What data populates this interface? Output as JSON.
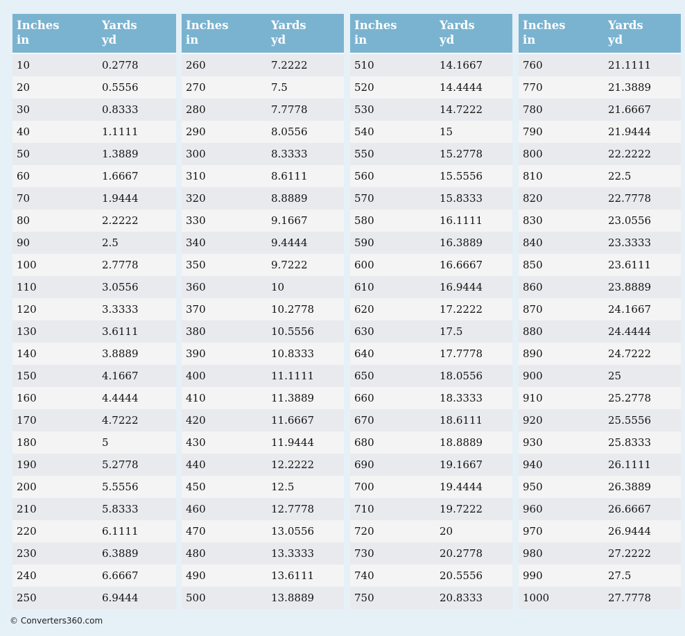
{
  "tables": [
    {
      "header": [
        {
          "name": "Inches",
          "unit": "in"
        },
        {
          "name": "Yards",
          "unit": "yd"
        }
      ],
      "rows": [
        [
          "10",
          "0.2778"
        ],
        [
          "20",
          "0.5556"
        ],
        [
          "30",
          "0.8333"
        ],
        [
          "40",
          "1.1111"
        ],
        [
          "50",
          "1.3889"
        ],
        [
          "60",
          "1.6667"
        ],
        [
          "70",
          "1.9444"
        ],
        [
          "80",
          "2.2222"
        ],
        [
          "90",
          "2.5"
        ],
        [
          "100",
          "2.7778"
        ],
        [
          "110",
          "3.0556"
        ],
        [
          "120",
          "3.3333"
        ],
        [
          "130",
          "3.6111"
        ],
        [
          "140",
          "3.8889"
        ],
        [
          "150",
          "4.1667"
        ],
        [
          "160",
          "4.4444"
        ],
        [
          "170",
          "4.7222"
        ],
        [
          "180",
          "5"
        ],
        [
          "190",
          "5.2778"
        ],
        [
          "200",
          "5.5556"
        ],
        [
          "210",
          "5.8333"
        ],
        [
          "220",
          "6.1111"
        ],
        [
          "230",
          "6.3889"
        ],
        [
          "240",
          "6.6667"
        ],
        [
          "250",
          "6.9444"
        ]
      ]
    },
    {
      "header": [
        {
          "name": "Inches",
          "unit": "in"
        },
        {
          "name": "Yards",
          "unit": "yd"
        }
      ],
      "rows": [
        [
          "260",
          "7.2222"
        ],
        [
          "270",
          "7.5"
        ],
        [
          "280",
          "7.7778"
        ],
        [
          "290",
          "8.0556"
        ],
        [
          "300",
          "8.3333"
        ],
        [
          "310",
          "8.6111"
        ],
        [
          "320",
          "8.8889"
        ],
        [
          "330",
          "9.1667"
        ],
        [
          "340",
          "9.4444"
        ],
        [
          "350",
          "9.7222"
        ],
        [
          "360",
          "10"
        ],
        [
          "370",
          "10.2778"
        ],
        [
          "380",
          "10.5556"
        ],
        [
          "390",
          "10.8333"
        ],
        [
          "400",
          "11.1111"
        ],
        [
          "410",
          "11.3889"
        ],
        [
          "420",
          "11.6667"
        ],
        [
          "430",
          "11.9444"
        ],
        [
          "440",
          "12.2222"
        ],
        [
          "450",
          "12.5"
        ],
        [
          "460",
          "12.7778"
        ],
        [
          "470",
          "13.0556"
        ],
        [
          "480",
          "13.3333"
        ],
        [
          "490",
          "13.6111"
        ],
        [
          "500",
          "13.8889"
        ]
      ]
    },
    {
      "header": [
        {
          "name": "Inches",
          "unit": "in"
        },
        {
          "name": "Yards",
          "unit": "yd"
        }
      ],
      "rows": [
        [
          "510",
          "14.1667"
        ],
        [
          "520",
          "14.4444"
        ],
        [
          "530",
          "14.7222"
        ],
        [
          "540",
          "15"
        ],
        [
          "550",
          "15.2778"
        ],
        [
          "560",
          "15.5556"
        ],
        [
          "570",
          "15.8333"
        ],
        [
          "580",
          "16.1111"
        ],
        [
          "590",
          "16.3889"
        ],
        [
          "600",
          "16.6667"
        ],
        [
          "610",
          "16.9444"
        ],
        [
          "620",
          "17.2222"
        ],
        [
          "630",
          "17.5"
        ],
        [
          "640",
          "17.7778"
        ],
        [
          "650",
          "18.0556"
        ],
        [
          "660",
          "18.3333"
        ],
        [
          "670",
          "18.6111"
        ],
        [
          "680",
          "18.8889"
        ],
        [
          "690",
          "19.1667"
        ],
        [
          "700",
          "19.4444"
        ],
        [
          "710",
          "19.7222"
        ],
        [
          "720",
          "20"
        ],
        [
          "730",
          "20.2778"
        ],
        [
          "740",
          "20.5556"
        ],
        [
          "750",
          "20.8333"
        ]
      ]
    },
    {
      "header": [
        {
          "name": "Inches",
          "unit": "in"
        },
        {
          "name": "Yards",
          "unit": "yd"
        }
      ],
      "rows": [
        [
          "760",
          "21.1111"
        ],
        [
          "770",
          "21.3889"
        ],
        [
          "780",
          "21.6667"
        ],
        [
          "790",
          "21.9444"
        ],
        [
          "800",
          "22.2222"
        ],
        [
          "810",
          "22.5"
        ],
        [
          "820",
          "22.7778"
        ],
        [
          "830",
          "23.0556"
        ],
        [
          "840",
          "23.3333"
        ],
        [
          "850",
          "23.6111"
        ],
        [
          "860",
          "23.8889"
        ],
        [
          "870",
          "24.1667"
        ],
        [
          "880",
          "24.4444"
        ],
        [
          "890",
          "24.7222"
        ],
        [
          "900",
          "25"
        ],
        [
          "910",
          "25.2778"
        ],
        [
          "920",
          "25.5556"
        ],
        [
          "930",
          "25.8333"
        ],
        [
          "940",
          "26.1111"
        ],
        [
          "950",
          "26.3889"
        ],
        [
          "960",
          "26.6667"
        ],
        [
          "970",
          "26.9444"
        ],
        [
          "980",
          "27.2222"
        ],
        [
          "990",
          "27.5"
        ],
        [
          "1000",
          "27.7778"
        ]
      ]
    }
  ],
  "footer": "© Converters360.com"
}
